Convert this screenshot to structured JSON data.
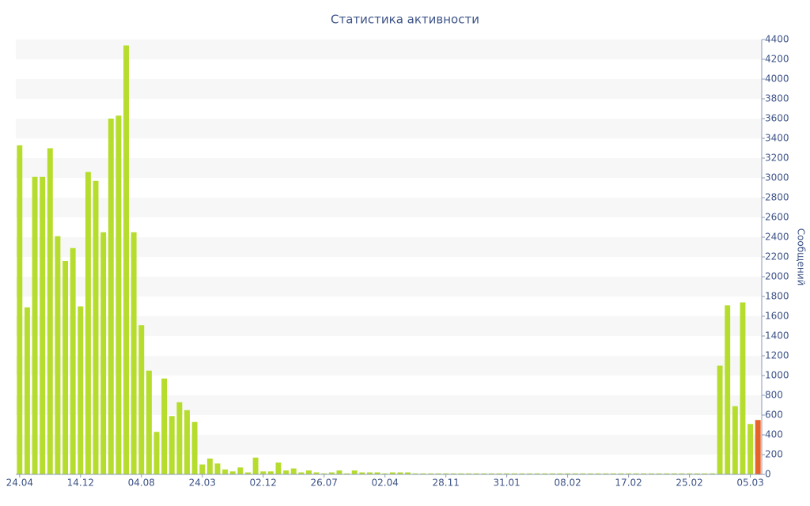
{
  "chart_data": {
    "type": "bar",
    "title": "Статистика активности",
    "y_axis_label": "Сообщений",
    "categories": [
      "24.04",
      null,
      null,
      null,
      null,
      null,
      null,
      null,
      "14.12",
      null,
      null,
      null,
      null,
      null,
      null,
      null,
      "04.08",
      null,
      null,
      null,
      null,
      null,
      null,
      null,
      "24.03",
      null,
      null,
      null,
      null,
      null,
      null,
      null,
      "02.12",
      null,
      null,
      null,
      null,
      null,
      null,
      null,
      "26.07",
      null,
      null,
      null,
      null,
      null,
      null,
      null,
      "02.04",
      null,
      null,
      null,
      null,
      null,
      null,
      null,
      "28.11",
      null,
      null,
      null,
      null,
      null,
      null,
      null,
      "31.01",
      null,
      null,
      null,
      null,
      null,
      null,
      null,
      "08.02",
      null,
      null,
      null,
      null,
      null,
      null,
      null,
      "17.02",
      null,
      null,
      null,
      null,
      null,
      null,
      null,
      "25.02",
      null,
      null,
      null,
      null,
      null,
      null,
      null,
      "05.03",
      null
    ],
    "values": [
      3330,
      1690,
      3010,
      3010,
      3300,
      2410,
      2160,
      2290,
      1700,
      3060,
      2970,
      2450,
      3600,
      3630,
      4340,
      2450,
      1510,
      1050,
      430,
      970,
      590,
      730,
      650,
      530,
      100,
      160,
      110,
      50,
      30,
      70,
      20,
      170,
      30,
      30,
      120,
      40,
      60,
      20,
      40,
      20,
      10,
      20,
      40,
      10,
      40,
      20,
      20,
      20,
      10,
      20,
      20,
      20,
      10,
      10,
      10,
      10,
      10,
      10,
      10,
      10,
      10,
      10,
      10,
      10,
      10,
      10,
      10,
      10,
      10,
      10,
      10,
      10,
      10,
      10,
      10,
      10,
      10,
      10,
      10,
      10,
      10,
      10,
      10,
      10,
      10,
      10,
      10,
      10,
      10,
      10,
      10,
      10,
      1100,
      1710,
      690,
      1740,
      510,
      550
    ],
    "color": "#b6dd2e",
    "highlight": {
      "index": 97,
      "color": "#e5622b"
    },
    "ylim": [
      0,
      4400
    ],
    "yticks": [
      0,
      200,
      400,
      600,
      800,
      1000,
      1200,
      1400,
      1600,
      1800,
      2000,
      2200,
      2400,
      2600,
      2800,
      3000,
      3200,
      3400,
      3600,
      3800,
      4000,
      4200,
      4400
    ],
    "grid": "bands",
    "y_axis_side": "right"
  }
}
